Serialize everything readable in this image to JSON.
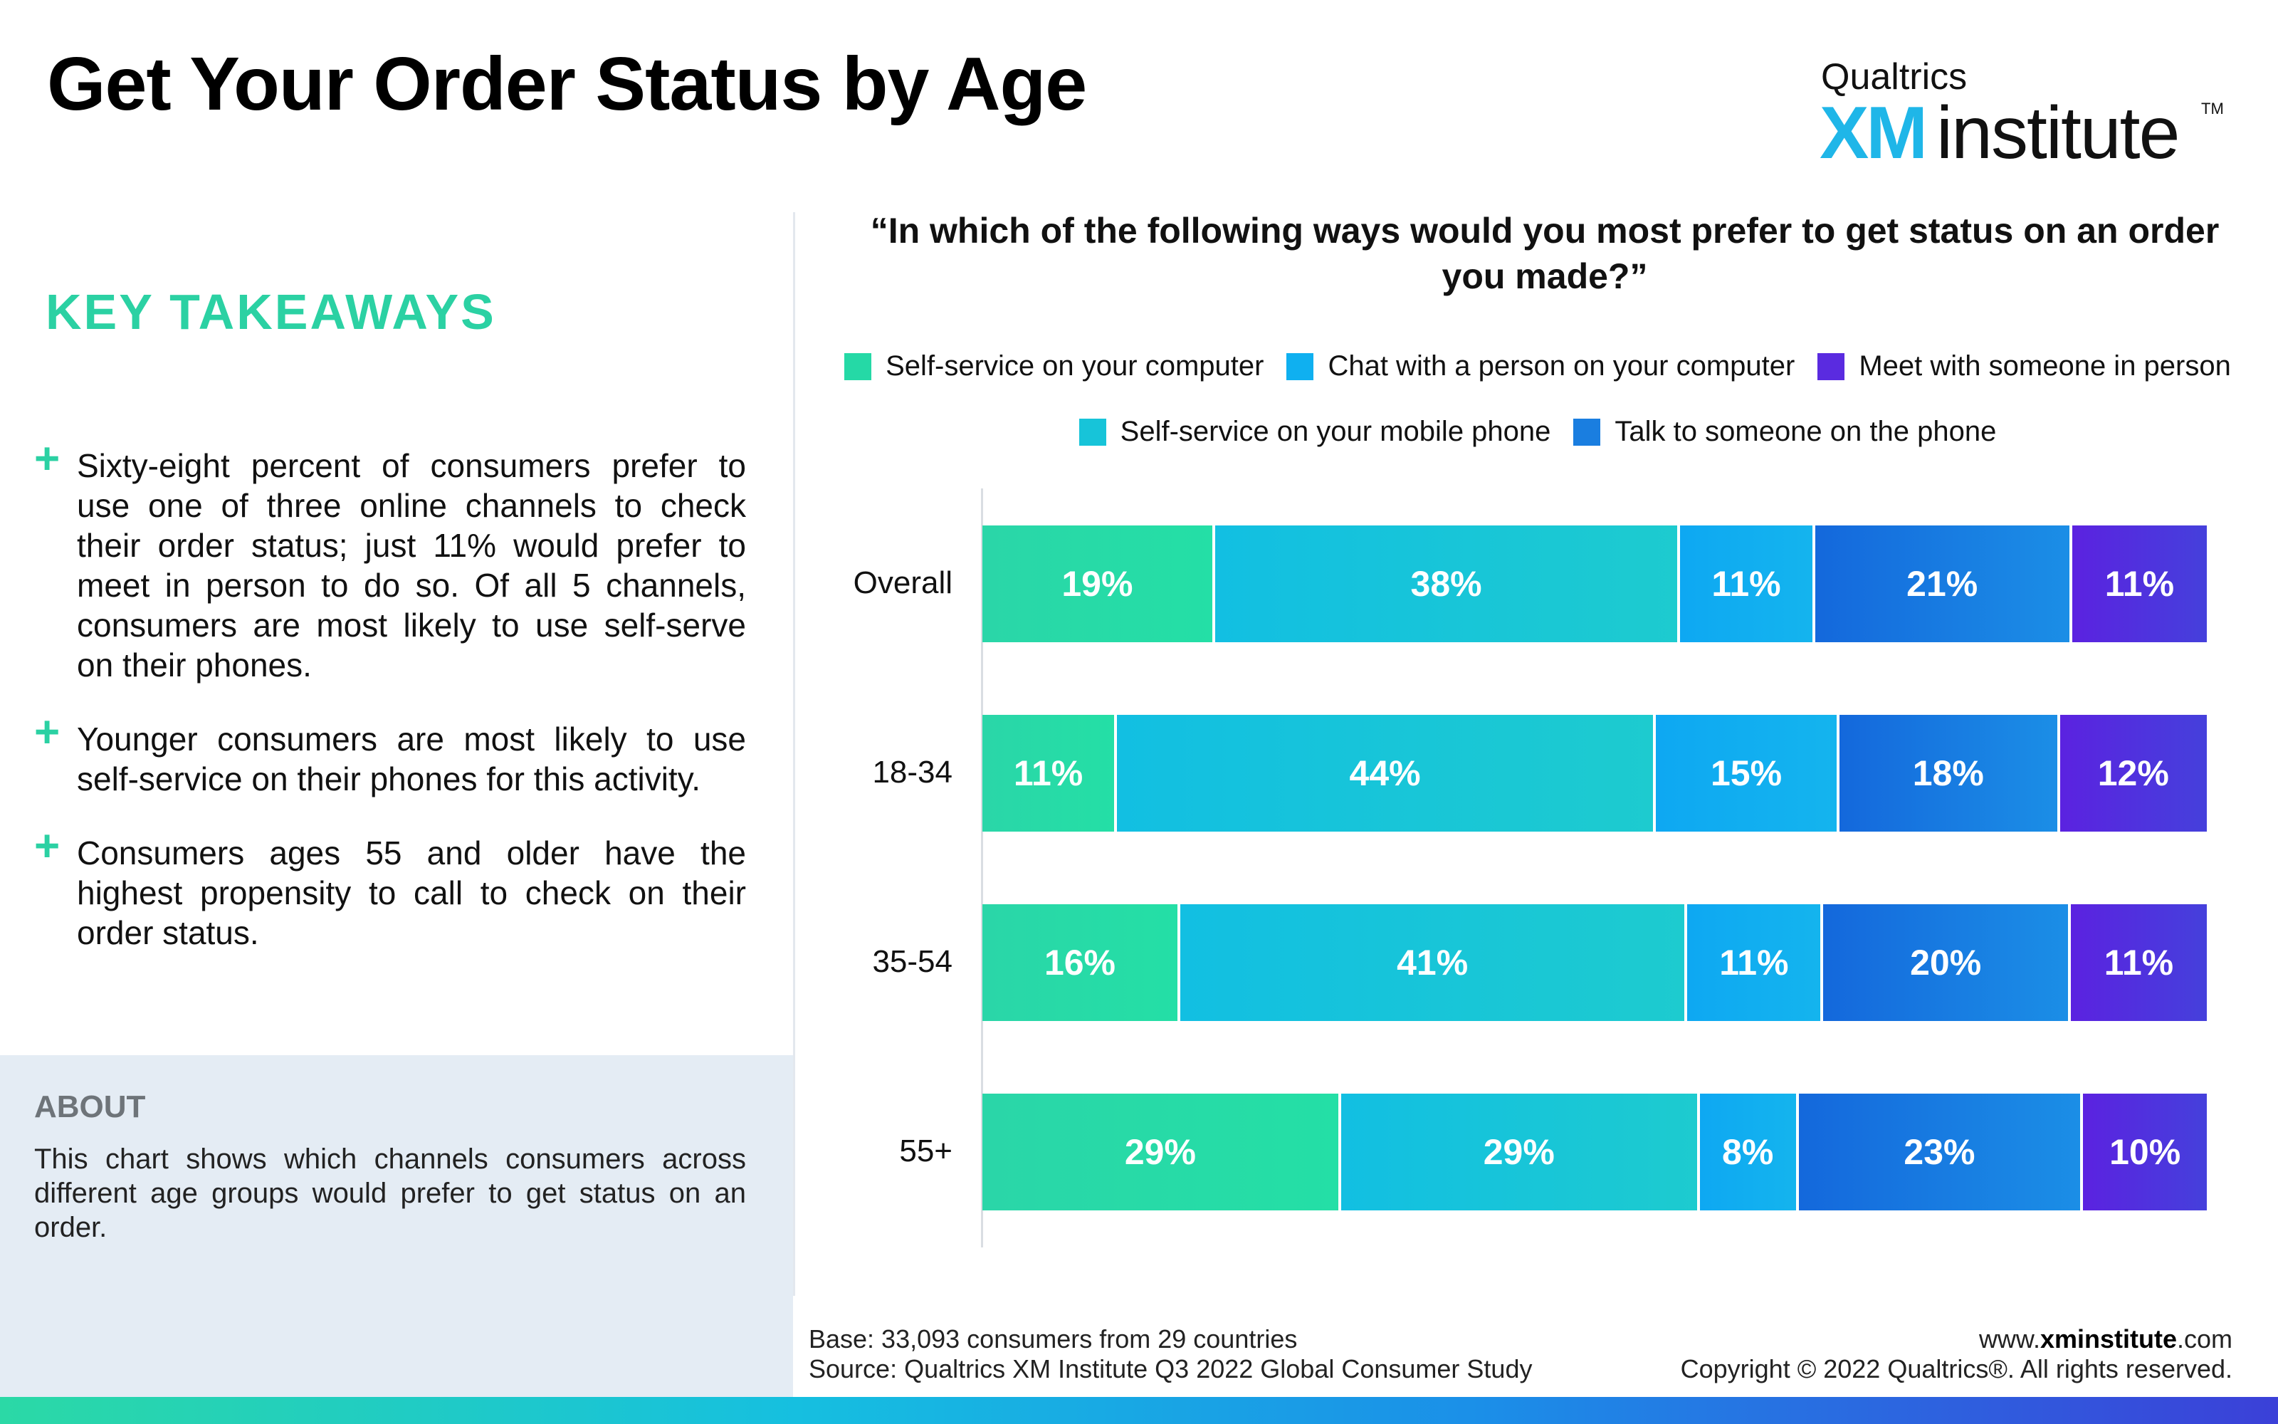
{
  "title": "Get Your Order Status by Age",
  "logo": {
    "brand": "Qualtrics",
    "xm": "XM",
    "product": "institute",
    "tm": "TM"
  },
  "key_takeaways": {
    "heading": "KEY TAKEAWAYS",
    "bullets": [
      "Sixty-eight percent of consumers prefer to use one of three online channels to check their order status; just 11% would prefer to meet in person to do so. Of all 5 channels, consumers are most likely to use self-serve on their phones.",
      "Younger consumers are most likely to use self-service on their phones for this activity.",
      "Consumers ages 55 and older have the highest propensity to call to check on their order status."
    ]
  },
  "about": {
    "heading": "ABOUT",
    "text": "This chart shows which channels consumers across different age groups would prefer to get status on an order."
  },
  "colors": {
    "self_service_computer": "#25d9a6",
    "self_service_mobile": "#17c4d9",
    "chat_person_computer": "#0fb0f0",
    "talk_phone": "#1a7ee0",
    "meet_in_person": "#5a2be0",
    "accent": "#2bd1a3"
  },
  "chart_data": {
    "type": "bar",
    "orientation": "horizontal",
    "stacked": true,
    "title": "“In which of the following ways would you most prefer to get status on an order you made?”",
    "categories": [
      "Overall",
      "18-34",
      "35-54",
      "55+"
    ],
    "series": [
      {
        "name": "Self-service on your computer",
        "values": [
          19,
          11,
          16,
          29
        ]
      },
      {
        "name": "Self-service on your mobile phone",
        "values": [
          38,
          44,
          41,
          29
        ]
      },
      {
        "name": "Chat with a person on your computer",
        "values": [
          11,
          15,
          11,
          8
        ]
      },
      {
        "name": "Talk to someone on the phone",
        "values": [
          21,
          18,
          20,
          23
        ]
      },
      {
        "name": "Meet with someone in person",
        "values": [
          11,
          12,
          11,
          10
        ]
      }
    ],
    "legend_rows": [
      [
        "Self-service on your computer",
        "Chat with a person on your computer",
        "Meet with someone in person"
      ],
      [
        "Self-service on your mobile phone",
        "Talk to someone on the phone"
      ]
    ],
    "value_suffix": "%",
    "legend_position": "top",
    "grid": false
  },
  "footer": {
    "base": "Base: 33,093 consumers from 29 countries",
    "source": "Source: Qualtrics XM Institute Q3 2022 Global Consumer Study",
    "url_prefix": "www.",
    "url_bold": "xminstitute",
    "url_suffix": ".com",
    "copyright": "Copyright © 2022 Qualtrics®. All rights reserved."
  }
}
